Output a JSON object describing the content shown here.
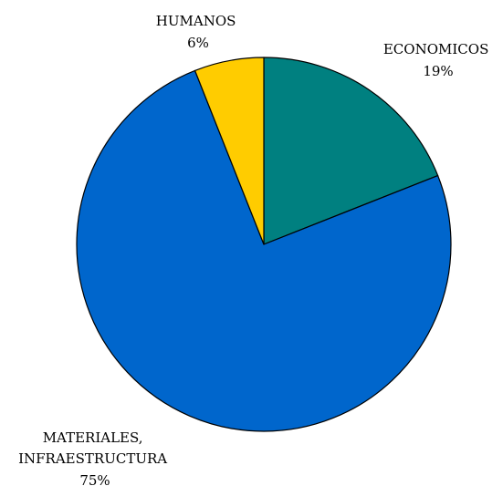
{
  "chart_data": {
    "type": "pie",
    "title": "",
    "slices": [
      {
        "label_lines": [
          "ECONOMICOS"
        ],
        "percent_label": "19%",
        "value": 19,
        "color": "#008080"
      },
      {
        "label_lines": [
          "MATERIALES,",
          "INFRAESTRUCTURA"
        ],
        "percent_label": "75%",
        "value": 75,
        "color": "#0066CC"
      },
      {
        "label_lines": [
          "HUMANOS"
        ],
        "percent_label": "6%",
        "value": 6,
        "color": "#FFCC00"
      }
    ],
    "start": "12 o'clock",
    "direction": "clockwise",
    "legend": "none",
    "slice_border_color": "#000000"
  }
}
